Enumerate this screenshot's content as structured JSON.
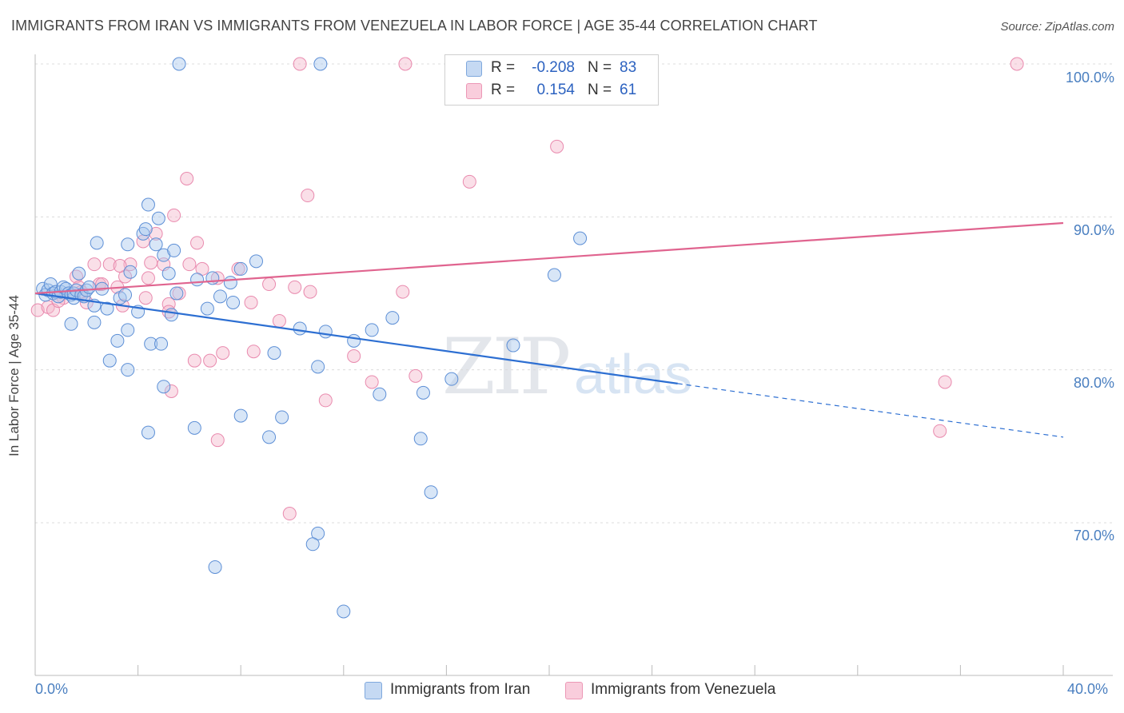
{
  "title": "IMMIGRANTS FROM IRAN VS IMMIGRANTS FROM VENEZUELA IN LABOR FORCE | AGE 35-44 CORRELATION CHART",
  "source": "Source: ZipAtlas.com",
  "watermark": {
    "zip": "ZIP",
    "atlas": "atlas"
  },
  "legend": {
    "iran": {
      "r_label": "R =",
      "r_value": "-0.208",
      "n_label": "N =",
      "n_value": "83"
    },
    "venezuela": {
      "r_label": "R =",
      "r_value": "0.154",
      "n_label": "N =",
      "n_value": "61"
    }
  },
  "bottom_legend": {
    "iran": "Immigrants from Iran",
    "venezuela": "Immigrants from Venezuela"
  },
  "chart_data": {
    "type": "scatter",
    "ylabel": "In Labor Force | Age 35-44",
    "xlim": [
      0,
      40
    ],
    "ylim": [
      60,
      102
    ],
    "x_tick_labels": [
      "0.0%",
      "40.0%"
    ],
    "y_tick_labels": [
      "100.0%",
      "90.0%",
      "80.0%",
      "70.0%"
    ],
    "y_ticks": [
      100,
      90,
      80,
      70
    ],
    "colors": {
      "iran": "#a9c7ee",
      "iran_line": "#2d6fd2",
      "venezuela": "#f5b9cd",
      "venezuela_line": "#e0648f"
    },
    "series": [
      {
        "name": "Immigrants from Iran",
        "key": "iran",
        "trend": {
          "x": [
            0,
            25,
            40
          ],
          "y": [
            85.0,
            79.1,
            75.6
          ],
          "solid_until": 25
        },
        "points": [
          [
            0.3,
            85.3
          ],
          [
            0.4,
            84.9
          ],
          [
            0.5,
            85.2
          ],
          [
            0.6,
            85.6
          ],
          [
            0.7,
            85.0
          ],
          [
            0.8,
            85.1
          ],
          [
            0.9,
            84.8
          ],
          [
            1.0,
            85.1
          ],
          [
            1.1,
            85.4
          ],
          [
            1.2,
            85.3
          ],
          [
            1.3,
            85.0
          ],
          [
            1.4,
            84.9
          ],
          [
            1.5,
            84.7
          ],
          [
            1.5,
            85.0
          ],
          [
            1.6,
            85.2
          ],
          [
            1.7,
            86.3
          ],
          [
            1.8,
            84.9
          ],
          [
            1.9,
            84.8
          ],
          [
            2.0,
            85.2
          ],
          [
            2.1,
            85.4
          ],
          [
            1.4,
            83.0
          ],
          [
            2.3,
            83.1
          ],
          [
            2.8,
            84.0
          ],
          [
            3.3,
            84.7
          ],
          [
            3.6,
            82.6
          ],
          [
            3.2,
            81.9
          ],
          [
            2.9,
            80.6
          ],
          [
            3.6,
            80.0
          ],
          [
            3.7,
            86.4
          ],
          [
            3.6,
            88.2
          ],
          [
            4.2,
            88.9
          ],
          [
            4.3,
            89.2
          ],
          [
            4.4,
            90.8
          ],
          [
            4.8,
            89.9
          ],
          [
            4.7,
            88.2
          ],
          [
            5.0,
            87.5
          ],
          [
            5.2,
            86.3
          ],
          [
            5.4,
            87.8
          ],
          [
            5.5,
            85.0
          ],
          [
            5.3,
            83.6
          ],
          [
            4.5,
            81.7
          ],
          [
            4.9,
            81.7
          ],
          [
            5.0,
            78.9
          ],
          [
            4.4,
            75.9
          ],
          [
            6.2,
            76.2
          ],
          [
            6.9,
            86.0
          ],
          [
            7.2,
            84.8
          ],
          [
            7.6,
            85.7
          ],
          [
            8.0,
            86.6
          ],
          [
            8.6,
            87.1
          ],
          [
            6.7,
            84.0
          ],
          [
            7.7,
            84.4
          ],
          [
            9.3,
            81.1
          ],
          [
            10.3,
            82.7
          ],
          [
            11.0,
            80.2
          ],
          [
            11.3,
            82.5
          ],
          [
            12.4,
            81.9
          ],
          [
            13.1,
            82.6
          ],
          [
            13.4,
            78.4
          ],
          [
            13.9,
            83.4
          ],
          [
            15.0,
            75.5
          ],
          [
            15.1,
            78.5
          ],
          [
            15.4,
            72.0
          ],
          [
            16.2,
            79.4
          ],
          [
            18.6,
            81.6
          ],
          [
            20.2,
            86.2
          ],
          [
            21.2,
            88.6
          ],
          [
            9.6,
            76.9
          ],
          [
            9.1,
            75.6
          ],
          [
            8.0,
            77.0
          ],
          [
            11.0,
            69.3
          ],
          [
            10.8,
            68.6
          ],
          [
            7.0,
            67.1
          ],
          [
            12.0,
            64.2
          ],
          [
            5.6,
            100.0
          ],
          [
            11.1,
            100.0
          ],
          [
            2.4,
            88.3
          ],
          [
            2.3,
            84.2
          ],
          [
            3.5,
            84.9
          ],
          [
            4.0,
            83.8
          ],
          [
            6.3,
            85.9
          ],
          [
            2.6,
            85.3
          ],
          [
            18.4,
            100.0
          ]
        ]
      },
      {
        "name": "Immigrants from Venezuela",
        "key": "venezuela",
        "trend": {
          "x": [
            0,
            40
          ],
          "y": [
            85.0,
            89.6
          ],
          "solid_until": 40
        },
        "points": [
          [
            0.1,
            83.9
          ],
          [
            0.5,
            84.1
          ],
          [
            0.7,
            83.9
          ],
          [
            1.1,
            84.7
          ],
          [
            1.6,
            86.1
          ],
          [
            1.7,
            85.4
          ],
          [
            2.0,
            84.4
          ],
          [
            2.3,
            86.9
          ],
          [
            2.5,
            85.6
          ],
          [
            2.9,
            86.9
          ],
          [
            3.2,
            85.4
          ],
          [
            3.4,
            84.2
          ],
          [
            3.5,
            86.1
          ],
          [
            3.7,
            86.9
          ],
          [
            4.2,
            88.4
          ],
          [
            4.4,
            86.0
          ],
          [
            4.5,
            87.0
          ],
          [
            4.7,
            88.9
          ],
          [
            5.0,
            86.9
          ],
          [
            5.2,
            84.3
          ],
          [
            5.2,
            83.8
          ],
          [
            5.3,
            78.6
          ],
          [
            5.4,
            90.1
          ],
          [
            5.6,
            85.0
          ],
          [
            5.9,
            92.5
          ],
          [
            6.2,
            80.6
          ],
          [
            6.3,
            88.3
          ],
          [
            6.5,
            86.6
          ],
          [
            6.8,
            80.6
          ],
          [
            7.1,
            86.0
          ],
          [
            7.3,
            81.1
          ],
          [
            7.9,
            86.6
          ],
          [
            8.4,
            84.4
          ],
          [
            8.5,
            81.2
          ],
          [
            9.1,
            85.6
          ],
          [
            9.5,
            83.2
          ],
          [
            10.1,
            85.4
          ],
          [
            10.6,
            91.4
          ],
          [
            10.7,
            85.1
          ],
          [
            11.3,
            78.0
          ],
          [
            12.4,
            80.9
          ],
          [
            13.1,
            79.2
          ],
          [
            14.3,
            85.1
          ],
          [
            14.8,
            79.6
          ],
          [
            16.8,
            100.0
          ],
          [
            16.9,
            92.3
          ],
          [
            20.3,
            94.6
          ],
          [
            9.9,
            70.6
          ],
          [
            7.1,
            75.4
          ],
          [
            10.3,
            100.0
          ],
          [
            14.4,
            100.0
          ],
          [
            19.1,
            100.0
          ],
          [
            38.2,
            100.0
          ],
          [
            35.4,
            79.2
          ],
          [
            35.2,
            76.0
          ],
          [
            2.6,
            85.6
          ],
          [
            3.3,
            86.8
          ],
          [
            1.8,
            85.1
          ],
          [
            6.0,
            86.9
          ],
          [
            0.9,
            84.5
          ],
          [
            4.3,
            84.7
          ]
        ]
      }
    ]
  }
}
